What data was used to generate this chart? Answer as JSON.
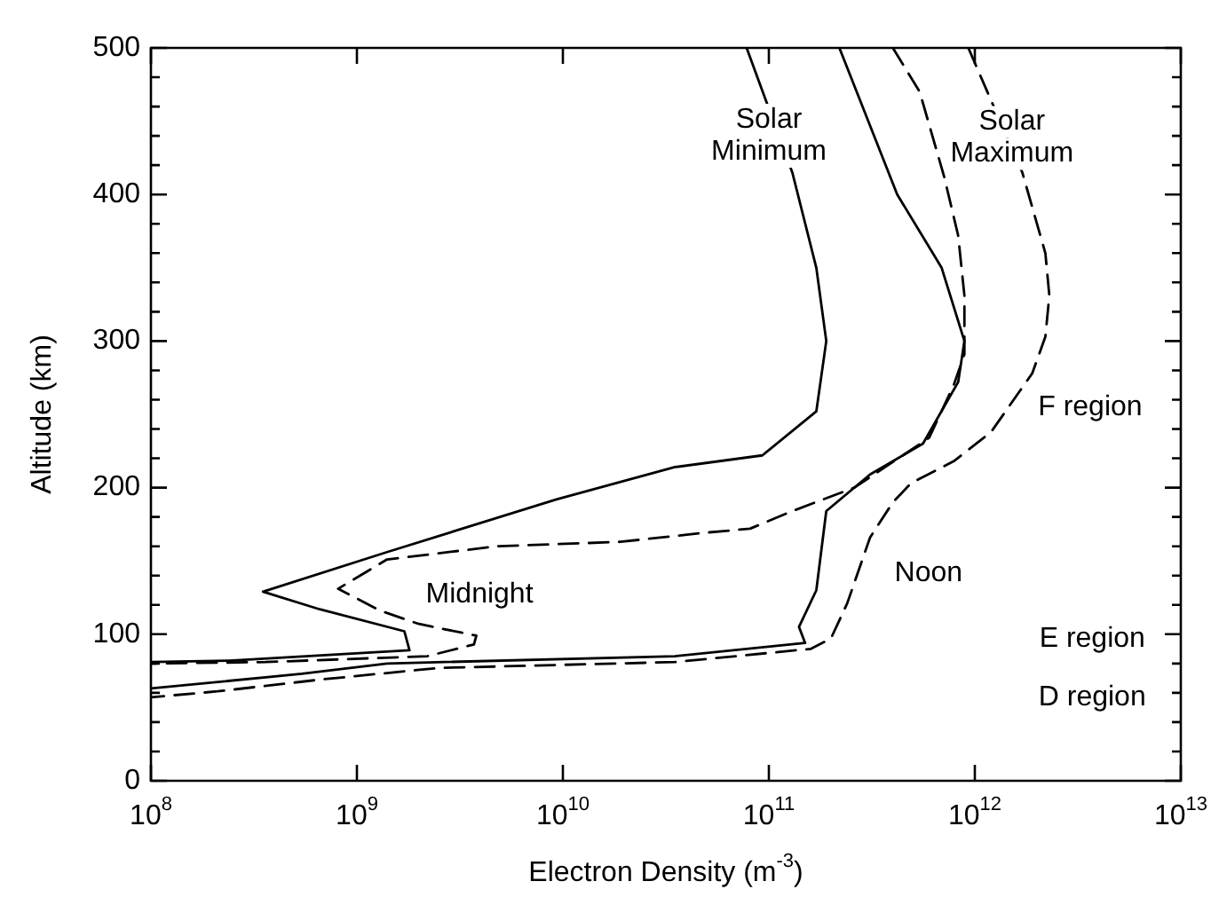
{
  "chart_data": {
    "type": "line",
    "xlabel": "Electron Density (m$^{-3}$)",
    "ylabel": "Altitude (km)",
    "log": "x",
    "grid": false,
    "legend": false,
    "marker": "none",
    "xlim": [
      100000000.0,
      10000000000000.0
    ],
    "ylim": [
      0,
      500
    ],
    "xticks": [
      {
        "value": 100000000.0,
        "label": "10$^{8}$"
      },
      {
        "value": 1000000000.0,
        "label": "10$^{9}$"
      },
      {
        "value": 10000000000.0,
        "label": "10$^{10}$"
      },
      {
        "value": 100000000000.0,
        "label": "10$^{11}$"
      },
      {
        "value": 1000000000000.0,
        "label": "10$^{12}$"
      },
      {
        "value": 10000000000000.0,
        "label": "10$^{13}$"
      }
    ],
    "yticks": [
      0,
      {
        "value": 20,
        "label": null
      },
      {
        "value": 40,
        "label": null
      },
      {
        "value": 60,
        "label": null
      },
      {
        "value": 80,
        "label": null
      },
      100,
      {
        "value": 120,
        "label": null
      },
      {
        "value": 140,
        "label": null
      },
      {
        "value": 160,
        "label": null
      },
      {
        "value": 180,
        "label": null
      },
      200,
      {
        "value": 220,
        "label": null
      },
      {
        "value": 240,
        "label": null
      },
      {
        "value": 260,
        "label": null
      },
      {
        "value": 280,
        "label": null
      },
      300,
      {
        "value": 320,
        "label": null
      },
      {
        "value": 340,
        "label": null
      },
      {
        "value": 360,
        "label": null
      },
      {
        "value": 380,
        "label": null
      },
      400,
      {
        "value": 420,
        "label": null
      },
      {
        "value": 440,
        "label": null
      },
      {
        "value": 460,
        "label": null
      },
      {
        "value": 480,
        "label": null
      },
      500
    ],
    "series": [
      {
        "color": "#000000",
        "line_style": "solid",
        "x": [
          78000000000.0,
          130000000000.0,
          170000000000.0,
          190000000000.0,
          170000000000.0,
          93000000000.0,
          35000000000.0,
          9300000000.0,
          1400000000.0,
          350000000.0,
          660000000.0,
          1700000000.0,
          1800000000.0,
          240000000.0,
          100000000.0
        ],
        "values": [
          500,
          415,
          350,
          300,
          252,
          222,
          214,
          192,
          156,
          129,
          117,
          102,
          89,
          82,
          81
        ]
      },
      {
        "color": "#000000",
        "line_style": "solid",
        "x": [
          220000000000.0,
          420000000000.0,
          690000000000.0,
          890000000000.0,
          830000000000.0,
          560000000000.0,
          310000000000.0,
          190000000000.0,
          170000000000.0,
          140000000000.0,
          150000000000.0,
          35000000000.0,
          1400000000.0,
          540000000.0,
          100000000.0
        ],
        "values": [
          500,
          400,
          350,
          300,
          272,
          230,
          209,
          184,
          130,
          105,
          94,
          85,
          80,
          73,
          63
        ]
      },
      {
        "color": "#000000",
        "line_style": "dashed",
        "x": [
          400000000000.0,
          540000000000.0,
          710000000000.0,
          830000000000.0,
          890000000000.0,
          890000000000.0,
          790000000000.0,
          600000000000.0,
          260000000000.0,
          130000000000.0,
          81000000000.0,
          47000000000.0,
          19000000000.0,
          4800000000.0,
          1400000000.0,
          810000000.0,
          1300000000.0,
          2000000000.0,
          3800000000.0,
          3700000000.0,
          2200000000.0,
          360000000.0,
          100000000.0
        ],
        "values": [
          500,
          470,
          412,
          372,
          331,
          291,
          270,
          234,
          200,
          184,
          172,
          169,
          163,
          160,
          151,
          131,
          116,
          107,
          99,
          93,
          85,
          81,
          80
        ]
      },
      {
        "color": "#000000",
        "line_style": "dashed",
        "x": [
          930000000000.0,
          1700000000000.0,
          2200000000000.0,
          2300000000000.0,
          2200000000000.0,
          1900000000000.0,
          1200000000000.0,
          790000000000.0,
          490000000000.0,
          400000000000.0,
          310000000000.0,
          240000000000.0,
          200000000000.0,
          160000000000.0,
          35000000000.0,
          2500000000.0,
          660000000.0,
          210000000.0,
          100000000.0
        ],
        "values": [
          500,
          415,
          360,
          331,
          303,
          278,
          238,
          218,
          203,
          190,
          166,
          121,
          97,
          90,
          81,
          77,
          69,
          61,
          57
        ]
      }
    ],
    "annotations": [
      "Solar\nMinimum",
      "Solar\nMaximum",
      "Midnight",
      "Noon",
      "F region",
      "E region",
      "D region"
    ]
  }
}
